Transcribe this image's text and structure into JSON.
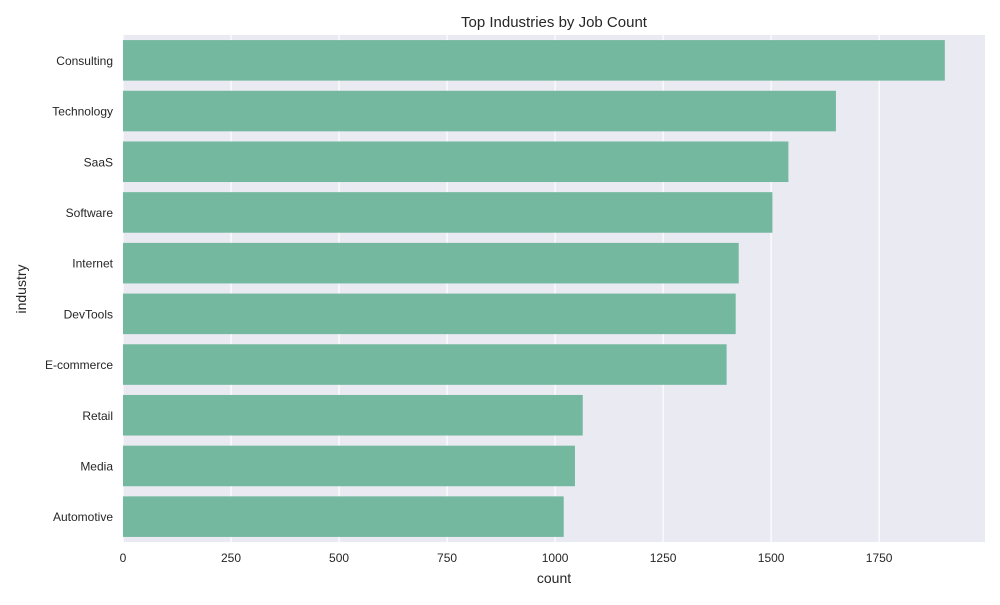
{
  "chart_data": {
    "type": "bar",
    "orientation": "horizontal",
    "title": "Top Industries by Job Count",
    "xlabel": "count",
    "ylabel": "industry",
    "categories": [
      "Consulting",
      "Technology",
      "SaaS",
      "Software",
      "Internet",
      "DevTools",
      "E-commerce",
      "Retail",
      "Media",
      "Automotive"
    ],
    "values": [
      1902,
      1650,
      1540,
      1503,
      1425,
      1418,
      1397,
      1064,
      1046,
      1020
    ],
    "xlim": [
      0,
      1995
    ],
    "xticks": [
      0,
      250,
      500,
      750,
      1000,
      1250,
      1500,
      1750
    ],
    "grid": true,
    "colors": {
      "bar": "#75b8a0",
      "plot_background": "#eaeaf2",
      "grid": "#ffffff",
      "text": "#262626"
    }
  }
}
